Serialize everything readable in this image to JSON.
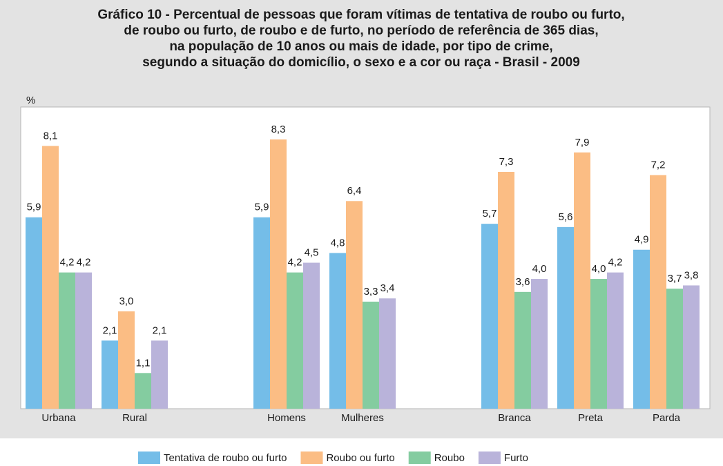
{
  "chart_data": {
    "type": "bar",
    "title": [
      "Gráfico 10 - Percentual de pessoas que foram vítimas de tentativa de roubo ou furto,",
      "de roubo ou furto, de roubo e de furto, no período de referência de 365 dias,",
      "na população de 10 anos ou mais de idade, por tipo de crime,",
      "segundo a situação do domicílio, o sexo e a cor ou raça - Brasil - 2009"
    ],
    "y_label": "%",
    "categories": [
      "Urbana",
      "Rural",
      "Homens",
      "Mulheres",
      "Branca",
      "Preta",
      "Parda"
    ],
    "ylim": [
      0,
      9.3
    ],
    "series": [
      {
        "name": "Tentativa de roubo ou furto",
        "color": "#74bde8",
        "values": [
          5.9,
          2.1,
          5.9,
          4.8,
          5.7,
          5.6,
          4.9
        ],
        "value_labels": [
          "5,9",
          "2,1",
          "5,9",
          "4,8",
          "5,7",
          "5,6",
          "4,9"
        ]
      },
      {
        "name": "Roubo ou furto",
        "color": "#fbbd84",
        "values": [
          8.1,
          3.0,
          8.3,
          6.4,
          7.3,
          7.9,
          7.2
        ],
        "value_labels": [
          "8,1",
          "3,0",
          "8,3",
          "6,4",
          "7,3",
          "7,9",
          "7,2"
        ]
      },
      {
        "name": "Roubo",
        "color": "#84cca0",
        "values": [
          4.2,
          1.1,
          4.2,
          3.3,
          3.6,
          4.0,
          3.7
        ],
        "value_labels": [
          "4,2",
          "1,1",
          "4,2",
          "3,3",
          "3,6",
          "4,0",
          "3,7"
        ]
      },
      {
        "name": "Furto",
        "color": "#b9b3da",
        "values": [
          4.2,
          2.1,
          4.5,
          3.4,
          4.0,
          4.2,
          3.8
        ],
        "value_labels": [
          "4,2",
          "2,1",
          "4,5",
          "3,4",
          "4,0",
          "4,2",
          "3,8"
        ]
      }
    ]
  }
}
